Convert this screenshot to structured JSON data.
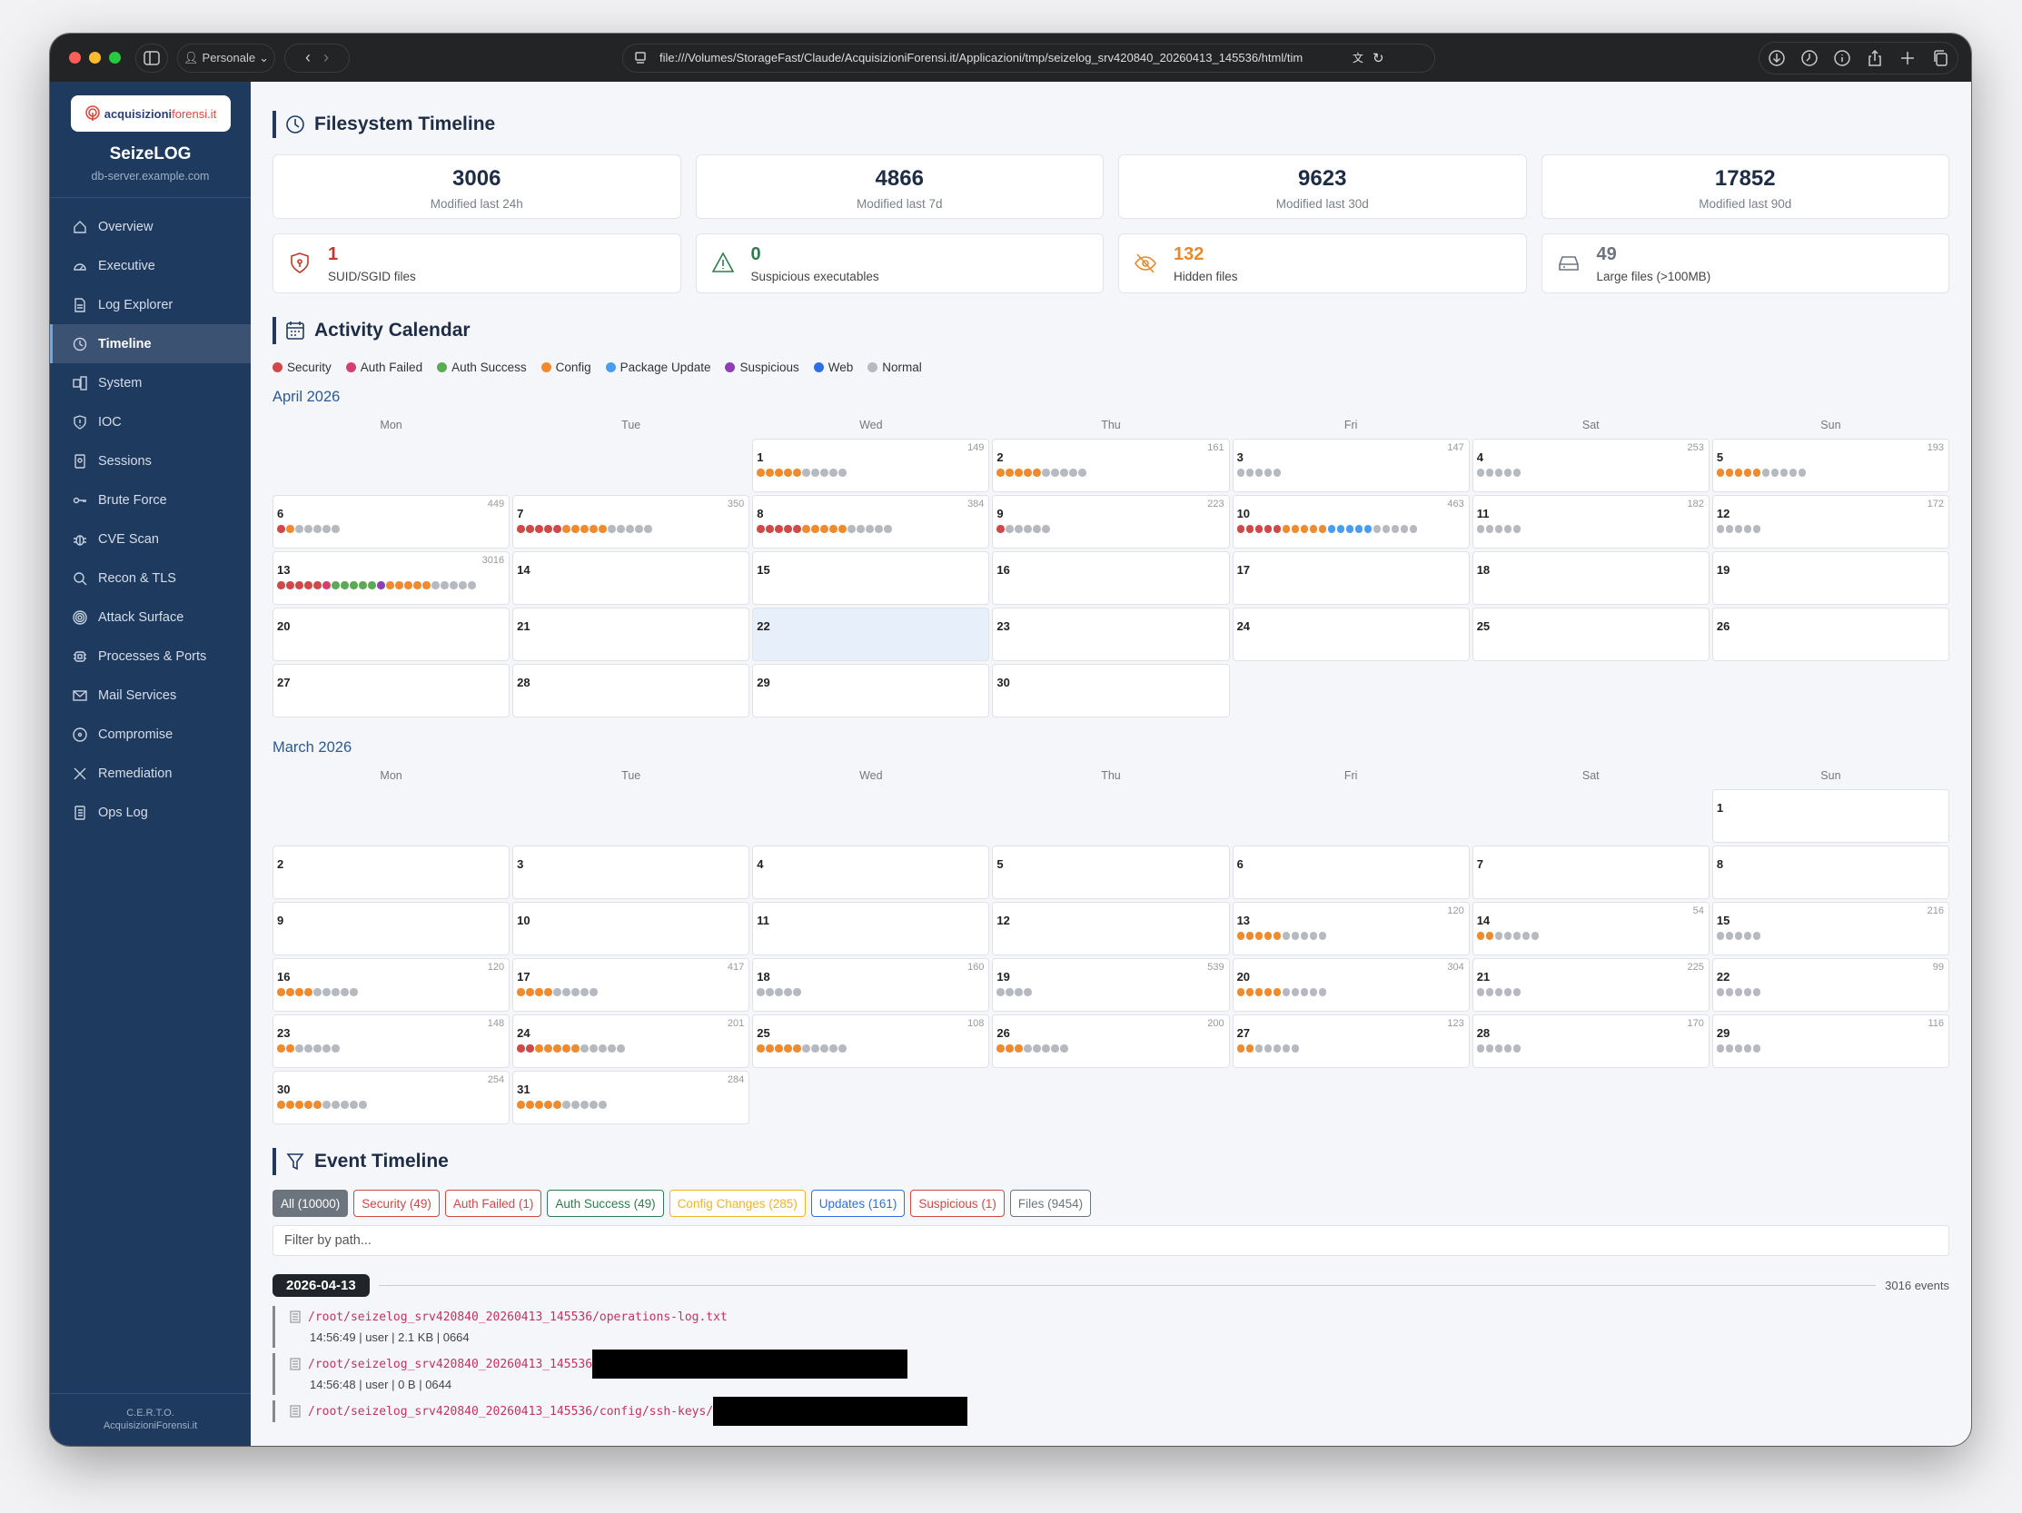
{
  "browser": {
    "profile": "Personale",
    "url": "file:///Volumes/StorageFast/Claude/AcquisizioniForensi.it/Applicazioni/tmp/seizelog_srv420840_20260413_145536/html/tim"
  },
  "sidebar": {
    "logo_text_a": "acquisizioni",
    "logo_text_b": "forensi.it",
    "brand": "SeizeLOG",
    "host": "db-server.example.com",
    "items": [
      {
        "label": "Overview",
        "icon": "home-icon"
      },
      {
        "label": "Executive",
        "icon": "gauge-icon"
      },
      {
        "label": "Log Explorer",
        "icon": "file-icon"
      },
      {
        "label": "Timeline",
        "icon": "clock-icon",
        "active": true
      },
      {
        "label": "System",
        "icon": "server-icon"
      },
      {
        "label": "IOC",
        "icon": "shield-alert-icon"
      },
      {
        "label": "Sessions",
        "icon": "badge-icon"
      },
      {
        "label": "Brute Force",
        "icon": "key-icon"
      },
      {
        "label": "CVE Scan",
        "icon": "bug-icon"
      },
      {
        "label": "Recon & TLS",
        "icon": "search-icon"
      },
      {
        "label": "Attack Surface",
        "icon": "target-icon"
      },
      {
        "label": "Processes & Ports",
        "icon": "cpu-icon"
      },
      {
        "label": "Mail Services",
        "icon": "mail-icon"
      },
      {
        "label": "Compromise",
        "icon": "radiation-icon"
      },
      {
        "label": "Remediation",
        "icon": "tools-icon"
      },
      {
        "label": "Ops Log",
        "icon": "journal-icon"
      }
    ],
    "footer_line1": "C.E.R.T.O.",
    "footer_line2": "AcquisizioniForensi.it"
  },
  "filesystem": {
    "title": "Filesystem Timeline",
    "stats": [
      {
        "value": "3006",
        "label": "Modified last 24h"
      },
      {
        "value": "4866",
        "label": "Modified last 7d"
      },
      {
        "value": "9623",
        "label": "Modified last 30d"
      },
      {
        "value": "17852",
        "label": "Modified last 90d"
      }
    ],
    "alerts": [
      {
        "value": "1",
        "label": "SUID/SGID files",
        "icon": "shield-lock-icon",
        "color": "#c0392b"
      },
      {
        "value": "0",
        "label": "Suspicious executables",
        "icon": "warning-icon",
        "color": "#2e7d4f"
      },
      {
        "value": "132",
        "label": "Hidden files",
        "icon": "eye-slash-icon",
        "color": "#e8892b"
      },
      {
        "value": "49",
        "label": "Large files (>100MB)",
        "icon": "hdd-icon",
        "color": "#6c757d"
      }
    ]
  },
  "calendar": {
    "title": "Activity Calendar",
    "legend": [
      {
        "key": "security",
        "label": "Security",
        "color": "#d04848"
      },
      {
        "key": "auth_failed",
        "label": "Auth Failed",
        "color": "#d63f6b"
      },
      {
        "key": "auth_success",
        "label": "Auth Success",
        "color": "#5bab55"
      },
      {
        "key": "config",
        "label": "Config",
        "color": "#ef8a2f"
      },
      {
        "key": "update",
        "label": "Package Update",
        "color": "#4b9ded"
      },
      {
        "key": "suspicious",
        "label": "Suspicious",
        "color": "#8e3fb3"
      },
      {
        "key": "web",
        "label": "Web",
        "color": "#2f6fe6"
      },
      {
        "key": "normal",
        "label": "Normal",
        "color": "#b6b9bf"
      }
    ],
    "weekdays": [
      "Mon",
      "Tue",
      "Wed",
      "Thu",
      "Fri",
      "Sat",
      "Sun"
    ],
    "months": [
      {
        "label": "April 2026",
        "year": 2026,
        "month": 4,
        "today": 22,
        "days": {
          "1": {
            "count": "149",
            "dots": [
              [
                "config",
                5
              ],
              [
                "normal",
                5
              ]
            ]
          },
          "2": {
            "count": "161",
            "dots": [
              [
                "config",
                5
              ],
              [
                "normal",
                5
              ]
            ]
          },
          "3": {
            "count": "147",
            "dots": [
              [
                "normal",
                5
              ]
            ]
          },
          "4": {
            "count": "253",
            "dots": [
              [
                "normal",
                5
              ]
            ]
          },
          "5": {
            "count": "193",
            "dots": [
              [
                "config",
                5
              ],
              [
                "normal",
                5
              ]
            ]
          },
          "6": {
            "count": "449",
            "dots": [
              [
                "security",
                1
              ],
              [
                "config",
                1
              ],
              [
                "normal",
                5
              ]
            ]
          },
          "7": {
            "count": "350",
            "dots": [
              [
                "security",
                5
              ],
              [
                "config",
                5
              ],
              [
                "normal",
                5
              ]
            ]
          },
          "8": {
            "count": "384",
            "dots": [
              [
                "security",
                5
              ],
              [
                "config",
                5
              ],
              [
                "normal",
                5
              ]
            ]
          },
          "9": {
            "count": "223",
            "dots": [
              [
                "security",
                1
              ],
              [
                "normal",
                5
              ]
            ]
          },
          "10": {
            "count": "463",
            "dots": [
              [
                "security",
                5
              ],
              [
                "config",
                5
              ],
              [
                "update",
                5
              ],
              [
                "normal",
                5
              ]
            ]
          },
          "11": {
            "count": "182",
            "dots": [
              [
                "normal",
                5
              ]
            ]
          },
          "12": {
            "count": "172",
            "dots": [
              [
                "normal",
                5
              ]
            ]
          },
          "13": {
            "count": "3016",
            "dots": [
              [
                "security",
                5
              ],
              [
                "auth_failed",
                1
              ],
              [
                "auth_success",
                5
              ],
              [
                "suspicious",
                1
              ],
              [
                "config",
                5
              ],
              [
                "normal",
                5
              ]
            ]
          }
        }
      },
      {
        "label": "March 2026",
        "year": 2026,
        "month": 3,
        "days": {
          "13": {
            "count": "120",
            "dots": [
              [
                "config",
                5
              ],
              [
                "normal",
                5
              ]
            ]
          },
          "14": {
            "count": "54",
            "dots": [
              [
                "config",
                2
              ],
              [
                "normal",
                5
              ]
            ]
          },
          "15": {
            "count": "216",
            "dots": [
              [
                "normal",
                5
              ]
            ]
          },
          "16": {
            "count": "120",
            "dots": [
              [
                "config",
                4
              ],
              [
                "normal",
                5
              ]
            ]
          },
          "17": {
            "count": "417",
            "dots": [
              [
                "config",
                4
              ],
              [
                "normal",
                5
              ]
            ]
          },
          "18": {
            "count": "160",
            "dots": [
              [
                "normal",
                5
              ]
            ]
          },
          "19": {
            "count": "539",
            "dots": [
              [
                "normal",
                4
              ]
            ]
          },
          "20": {
            "count": "304",
            "dots": [
              [
                "config",
                5
              ],
              [
                "normal",
                5
              ]
            ]
          },
          "21": {
            "count": "225",
            "dots": [
              [
                "normal",
                5
              ]
            ]
          },
          "22": {
            "count": "99",
            "dots": [
              [
                "normal",
                5
              ]
            ]
          },
          "23": {
            "count": "148",
            "dots": [
              [
                "config",
                2
              ],
              [
                "normal",
                5
              ]
            ]
          },
          "24": {
            "count": "201",
            "dots": [
              [
                "security",
                2
              ],
              [
                "config",
                5
              ],
              [
                "normal",
                5
              ]
            ]
          },
          "25": {
            "count": "108",
            "dots": [
              [
                "config",
                5
              ],
              [
                "normal",
                5
              ]
            ]
          },
          "26": {
            "count": "200",
            "dots": [
              [
                "config",
                3
              ],
              [
                "normal",
                5
              ]
            ]
          },
          "27": {
            "count": "123",
            "dots": [
              [
                "config",
                2
              ],
              [
                "normal",
                5
              ]
            ]
          },
          "28": {
            "count": "170",
            "dots": [
              [
                "normal",
                5
              ]
            ]
          },
          "29": {
            "count": "116",
            "dots": [
              [
                "normal",
                5
              ]
            ]
          },
          "30": {
            "count": "254",
            "dots": [
              [
                "config",
                5
              ],
              [
                "normal",
                5
              ]
            ]
          },
          "31": {
            "count": "284",
            "dots": [
              [
                "config",
                5
              ],
              [
                "normal",
                5
              ]
            ]
          }
        }
      }
    ]
  },
  "events": {
    "title": "Event Timeline",
    "filters": [
      {
        "label": "All (10000)",
        "color": "#6c757d",
        "active": true
      },
      {
        "label": "Security (49)",
        "color": "#d04848"
      },
      {
        "label": "Auth Failed (1)",
        "color": "#d04848"
      },
      {
        "label": "Auth Success (49)",
        "color": "#2e7d4f"
      },
      {
        "label": "Config Changes (285)",
        "color": "#f0b429"
      },
      {
        "label": "Updates (161)",
        "color": "#2f6fe6"
      },
      {
        "label": "Suspicious (1)",
        "color": "#d04848"
      },
      {
        "label": "Files (9454)",
        "color": "#6c757d"
      }
    ],
    "filter_placeholder": "Filter by path...",
    "date": "2026-04-13",
    "date_count": "3016 events",
    "entries": [
      {
        "path": "/root/seizelog_srv420840_20260413_145536/operations-log.txt",
        "meta": "14:56:49 | user | 2.1 KB | 0664"
      },
      {
        "path": "/root/seizelog_srv420840_20260413_145536",
        "meta": "14:56:48 | user | 0 B | 0644",
        "redacted": true
      },
      {
        "path": "/root/seizelog_srv420840_20260413_145536/config/ssh-keys/",
        "meta": "",
        "redacted": true
      }
    ]
  }
}
